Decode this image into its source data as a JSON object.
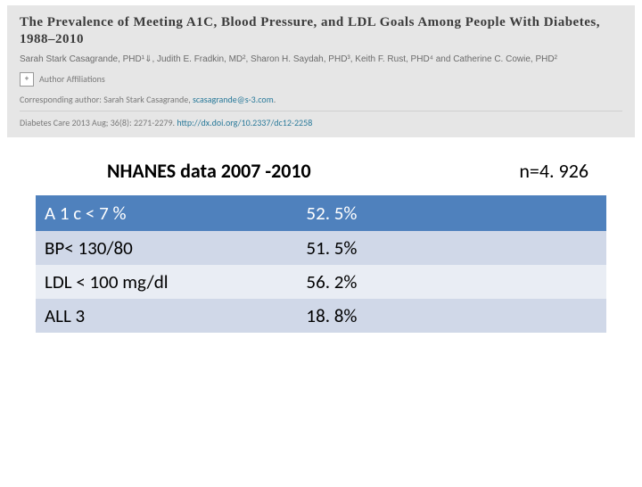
{
  "header": {
    "title": "The Prevalence of Meeting A1C, Blood Pressure, and LDL Goals Among People With Diabetes, 1988–2010",
    "authors": "Sarah Stark Casagrande, PHD¹⇓, Judith E. Fradkin, MD², Sharon H. Saydah, PHD³, Keith F. Rust, PHD⁴ and Catherine C. Cowie, PHD²",
    "affil_mark": "+",
    "affil_label": "Author Affiliations",
    "corresp_prefix": "Corresponding author: Sarah Stark Casagrande, ",
    "corresp_email": "scasagrande@s-3.com",
    "corresp_suffix": ".",
    "citation_prefix": "Diabetes Care 2013 Aug; 36(8): 2271-2279. ",
    "citation_doi": "http://dx.doi.org/10.2337/dc12-2258"
  },
  "mid": {
    "caption": "NHANES data 2007 -2010",
    "n": "n=4. 926"
  },
  "table": {
    "col_label_width": 290,
    "col_value_width": 350,
    "rows": [
      {
        "label": "A 1 c < 7 %",
        "value": "52. 5%",
        "style": "row-header"
      },
      {
        "label": "BP< 130/80",
        "value": "51. 5%",
        "style": "row-alt1"
      },
      {
        "label": "LDL < 100 mg/dl",
        "value": "56. 2%",
        "style": "row-alt2"
      },
      {
        "label": "ALL 3",
        "value": "18. 8%",
        "style": "row-alt1"
      }
    ]
  },
  "colors": {
    "header_bg": "#e6e6e6",
    "table_header_bg": "#4f81bd",
    "table_alt1_bg": "#d0d8e8",
    "table_alt2_bg": "#e9edf4",
    "link_color": "#2a7a9a"
  }
}
